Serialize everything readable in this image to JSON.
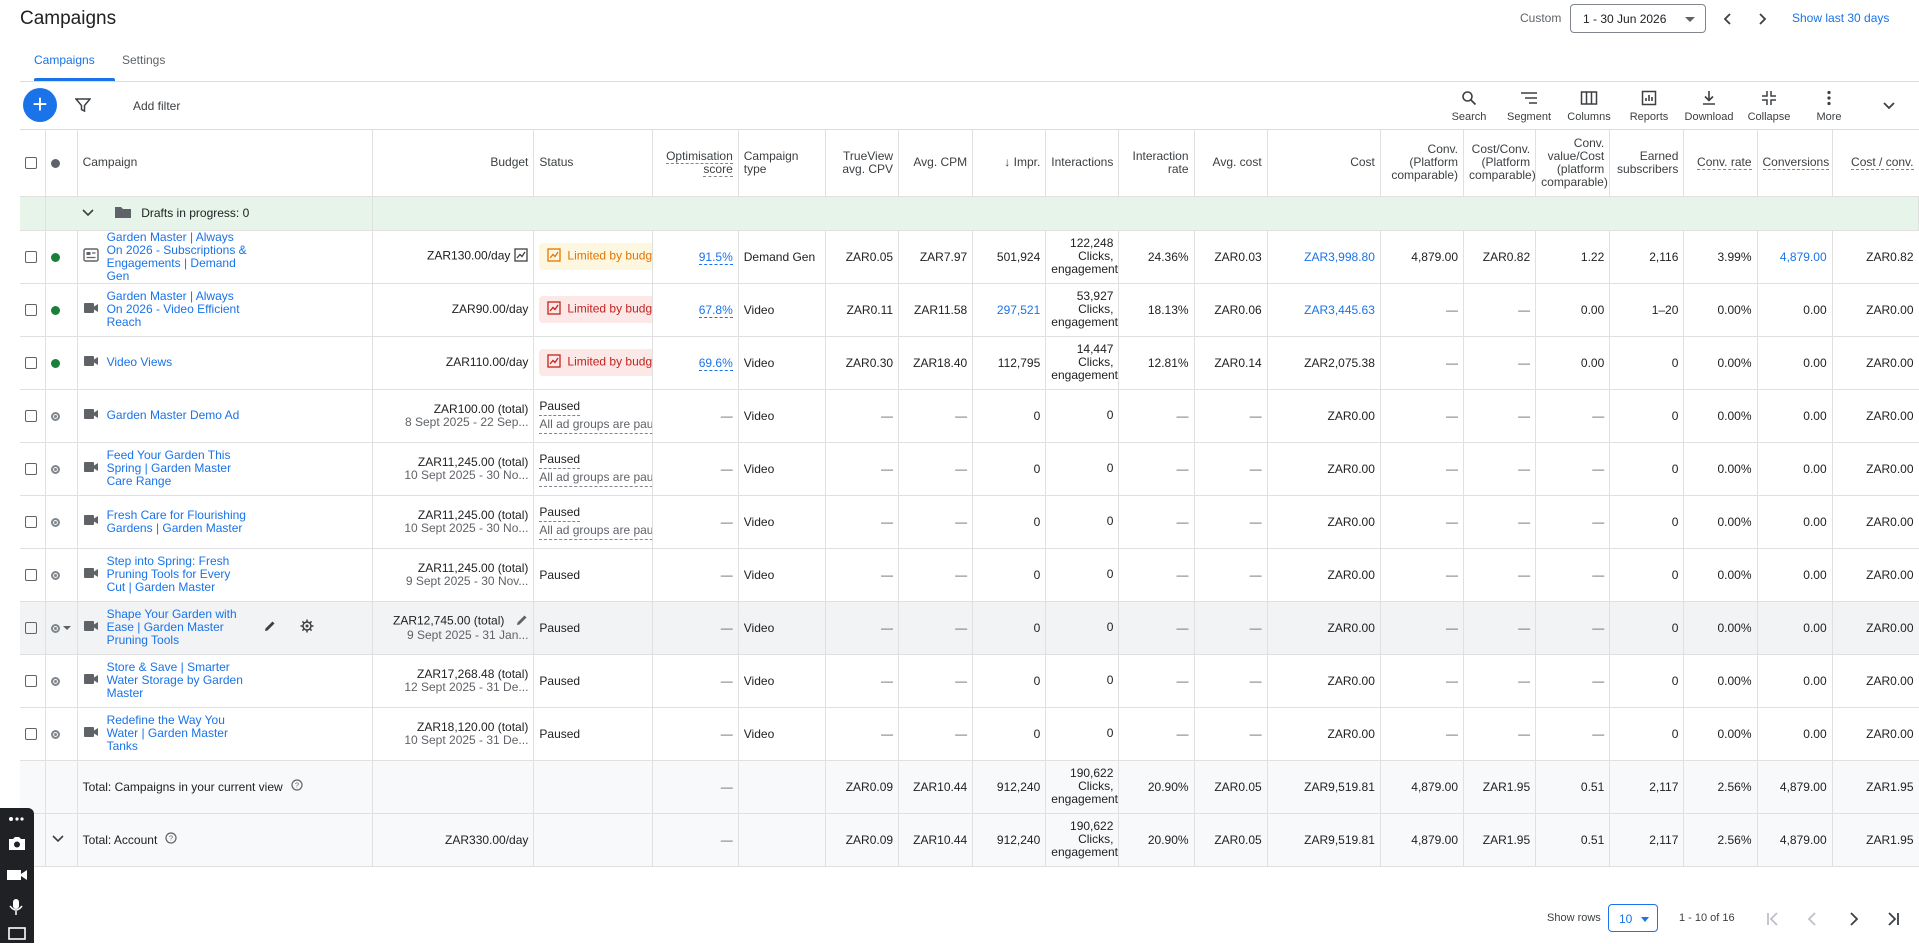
{
  "header": {
    "title": "Campaigns",
    "custom_label": "Custom",
    "date_range": "1 - 30 Jun 2026",
    "show_last": "Show last 30 days"
  },
  "tabs": [
    {
      "label": "Campaigns"
    },
    {
      "label": "Settings"
    }
  ],
  "toolbar": {
    "add_filter": "Add filter",
    "tools": [
      {
        "label": "Search",
        "icon": "search-icon"
      },
      {
        "label": "Segment",
        "icon": "segment-icon"
      },
      {
        "label": "Columns",
        "icon": "columns-icon"
      },
      {
        "label": "Reports",
        "icon": "reports-icon"
      },
      {
        "label": "Download",
        "icon": "download-icon"
      },
      {
        "label": "Collapse",
        "icon": "collapse-icon"
      },
      {
        "label": "More",
        "icon": "more-icon"
      }
    ]
  },
  "columns": {
    "campaign": "Campaign",
    "budget": "Budget",
    "status": "Status",
    "opt": "Optimisation score",
    "ctype": "Campaign type",
    "cpv": "TrueView avg. CPV",
    "cpm": "Avg. CPM",
    "impr": "↓ Impr.",
    "interactions": "Interactions",
    "irate": "Interaction rate",
    "avgcost": "Avg. cost",
    "cost": "Cost",
    "conv": "Conv. (Platform comparable)",
    "costconv": "Cost/Conv. (Platform comparable)",
    "convval": "Conv. value/Cost (platform comparable)",
    "earned": "Earned subscribers",
    "convrate": "Conv. rate",
    "conversions": "Conversions",
    "costperconv": "Cost / conv."
  },
  "drafts": {
    "label": "Drafts in progress: 0"
  },
  "rows": [
    {
      "status_dot": "green",
      "name": "Garden Master | Always On 2026 - Subscriptions & Engagements | Demand Gen",
      "type_icon": "demand-gen-icon",
      "budget": "ZAR130.00/day",
      "budget_sub": "",
      "status": "Limited by budget",
      "status_kind": "y",
      "status_sub": "",
      "opt": "91.5%",
      "ctype": "Demand Gen",
      "cpv": "ZAR0.05",
      "cpm": "ZAR7.97",
      "impr": "501,924",
      "impr_link": false,
      "inter": "122,248 Clicks, engagements",
      "irate": "24.36%",
      "avgcost": "ZAR0.03",
      "cost": "ZAR3,998.80",
      "cost_link": true,
      "conv": "4,879.00",
      "costconv": "ZAR0.82",
      "convval": "1.22",
      "earned": "2,116",
      "convrate": "3.99%",
      "conversions": "4,879.00",
      "conversions_link": true,
      "costperconv": "ZAR0.82"
    },
    {
      "status_dot": "green",
      "name": "Garden Master | Always On 2026 - Video Efficient Reach",
      "type_icon": "video-icon",
      "budget": "ZAR90.00/day",
      "budget_sub": "",
      "status": "Limited by budget",
      "status_kind": "r",
      "status_sub": "",
      "opt": "67.8%",
      "ctype": "Video",
      "cpv": "ZAR0.11",
      "cpm": "ZAR11.58",
      "impr": "297,521",
      "impr_link": true,
      "inter": "53,927 Clicks, engagements",
      "irate": "18.13%",
      "avgcost": "ZAR0.06",
      "cost": "ZAR3,445.63",
      "cost_link": true,
      "conv": "—",
      "costconv": "—",
      "convval": "0.00",
      "earned": "1–20",
      "convrate": "0.00%",
      "conversions": "0.00",
      "conversions_link": false,
      "costperconv": "ZAR0.00"
    },
    {
      "status_dot": "green",
      "name": "Video Views",
      "type_icon": "video-icon",
      "budget": "ZAR110.00/day",
      "budget_sub": "",
      "status": "Limited by budget",
      "status_kind": "r",
      "status_sub": "",
      "opt": "69.6%",
      "ctype": "Video",
      "cpv": "ZAR0.30",
      "cpm": "ZAR18.40",
      "impr": "112,795",
      "impr_link": false,
      "inter": "14,447 Clicks, engagements",
      "irate": "12.81%",
      "avgcost": "ZAR0.14",
      "cost": "ZAR2,075.38",
      "cost_link": false,
      "conv": "—",
      "costconv": "—",
      "convval": "0.00",
      "earned": "0",
      "convrate": "0.00%",
      "conversions": "0.00",
      "conversions_link": false,
      "costperconv": "ZAR0.00"
    },
    {
      "status_dot": "grey",
      "name": "Garden Master Demo Ad",
      "type_icon": "video-icon",
      "budget": "ZAR100.00 (total)",
      "budget_sub": "8 Sept 2025 - 22 Sep...",
      "status": "Paused",
      "status_kind": "p",
      "status_sub": "All ad groups are paused",
      "opt": "—",
      "ctype": "Video",
      "cpv": "—",
      "cpm": "—",
      "impr": "0",
      "impr_link": false,
      "inter": "0",
      "irate": "—",
      "avgcost": "—",
      "cost": "ZAR0.00",
      "cost_link": false,
      "conv": "—",
      "costconv": "—",
      "convval": "—",
      "earned": "0",
      "convrate": "0.00%",
      "conversions": "0.00",
      "conversions_link": false,
      "costperconv": "ZAR0.00"
    },
    {
      "status_dot": "grey",
      "name": "Feed Your Garden This Spring | Garden Master Care Range",
      "type_icon": "video-icon",
      "budget": "ZAR11,245.00 (total)",
      "budget_sub": "10 Sept 2025 - 30 No...",
      "status": "Paused",
      "status_kind": "p",
      "status_sub": "All ad groups are paused",
      "opt": "—",
      "ctype": "Video",
      "cpv": "—",
      "cpm": "—",
      "impr": "0",
      "impr_link": false,
      "inter": "0",
      "irate": "—",
      "avgcost": "—",
      "cost": "ZAR0.00",
      "cost_link": false,
      "conv": "—",
      "costconv": "—",
      "convval": "—",
      "earned": "0",
      "convrate": "0.00%",
      "conversions": "0.00",
      "conversions_link": false,
      "costperconv": "ZAR0.00"
    },
    {
      "status_dot": "grey",
      "name": " Fresh Care for Flourishing Gardens | Garden Master",
      "type_icon": "video-icon",
      "budget": "ZAR11,245.00 (total)",
      "budget_sub": "10 Sept 2025 - 30 No...",
      "status": "Paused",
      "status_kind": "p",
      "status_sub": "All ad groups are paused",
      "opt": "—",
      "ctype": "Video",
      "cpv": "—",
      "cpm": "—",
      "impr": "0",
      "impr_link": false,
      "inter": "0",
      "irate": "—",
      "avgcost": "—",
      "cost": "ZAR0.00",
      "cost_link": false,
      "conv": "—",
      "costconv": "—",
      "convval": "—",
      "earned": "0",
      "convrate": "0.00%",
      "conversions": "0.00",
      "conversions_link": false,
      "costperconv": "ZAR0.00"
    },
    {
      "status_dot": "grey",
      "name": "Step into Spring: Fresh Pruning Tools for Every Cut | Garden Master",
      "type_icon": "video-icon",
      "budget": "ZAR11,245.00 (total)",
      "budget_sub": "9 Sept 2025 - 30 Nov...",
      "status": "Paused",
      "status_kind": "s",
      "status_sub": "",
      "opt": "—",
      "ctype": "Video",
      "cpv": "—",
      "cpm": "—",
      "impr": "0",
      "impr_link": false,
      "inter": "0",
      "irate": "—",
      "avgcost": "—",
      "cost": "ZAR0.00",
      "cost_link": false,
      "conv": "—",
      "costconv": "—",
      "convval": "—",
      "earned": "0",
      "convrate": "0.00%",
      "conversions": "0.00",
      "conversions_link": false,
      "costperconv": "ZAR0.00"
    },
    {
      "status_dot": "grey",
      "name": "Shape Your Garden with Ease | Garden Master Pruning Tools",
      "type_icon": "video-icon",
      "budget": "ZAR12,745.00 (total)",
      "budget_sub": "9 Sept 2025 - 31 Jan...",
      "status": "Paused",
      "status_kind": "s",
      "status_sub": "",
      "opt": "—",
      "ctype": "Video",
      "cpv": "—",
      "cpm": "—",
      "impr": "0",
      "impr_link": false,
      "inter": "0",
      "irate": "—",
      "avgcost": "—",
      "cost": "ZAR0.00",
      "cost_link": false,
      "conv": "—",
      "costconv": "—",
      "convval": "—",
      "earned": "0",
      "convrate": "0.00%",
      "conversions": "0.00",
      "conversions_link": false,
      "costperconv": "ZAR0.00",
      "selected": true
    },
    {
      "status_dot": "grey",
      "name": "Store & Save | Smarter Water Storage by Garden Master",
      "type_icon": "video-icon",
      "budget": "ZAR17,268.48 (total)",
      "budget_sub": "12 Sept 2025 - 31 De...",
      "status": "Paused",
      "status_kind": "s",
      "status_sub": "",
      "opt": "—",
      "ctype": "Video",
      "cpv": "—",
      "cpm": "—",
      "impr": "0",
      "impr_link": false,
      "inter": "0",
      "irate": "—",
      "avgcost": "—",
      "cost": "ZAR0.00",
      "cost_link": false,
      "conv": "—",
      "costconv": "—",
      "convval": "—",
      "earned": "0",
      "convrate": "0.00%",
      "conversions": "0.00",
      "conversions_link": false,
      "costperconv": "ZAR0.00"
    },
    {
      "status_dot": "grey",
      "name": "Redefine the Way You Water | Garden Master Tanks",
      "type_icon": "video-icon",
      "budget": "ZAR18,120.00 (total)",
      "budget_sub": "10 Sept 2025 - 31 De...",
      "status": "Paused",
      "status_kind": "s",
      "status_sub": "",
      "opt": "—",
      "ctype": "Video",
      "cpv": "—",
      "cpm": "—",
      "impr": "0",
      "impr_link": false,
      "inter": "0",
      "irate": "—",
      "avgcost": "—",
      "cost": "ZAR0.00",
      "cost_link": false,
      "conv": "—",
      "costconv": "—",
      "convval": "—",
      "earned": "0",
      "convrate": "0.00%",
      "conversions": "0.00",
      "conversions_link": false,
      "costperconv": "ZAR0.00"
    }
  ],
  "totals": [
    {
      "label": "Total: Campaigns in your current view",
      "budget": "",
      "opt": "—",
      "cpv": "ZAR0.09",
      "cpm": "ZAR10.44",
      "impr": "912,240",
      "inter": "190,622 Clicks, engagements",
      "irate": "20.90%",
      "avgcost": "ZAR0.05",
      "cost": "ZAR9,519.81",
      "conv": "4,879.00",
      "costconv": "ZAR1.95",
      "convval": "0.51",
      "earned": "2,117",
      "convrate": "2.56%",
      "conversions": "4,879.00",
      "costperconv": "ZAR1.95"
    },
    {
      "label": "Total: Account",
      "budget": "ZAR330.00/day",
      "opt": "—",
      "cpv": "ZAR0.09",
      "cpm": "ZAR10.44",
      "impr": "912,240",
      "inter": "190,622 Clicks, engagements",
      "irate": "20.90%",
      "avgcost": "ZAR0.05",
      "cost": "ZAR9,519.81",
      "conv": "4,879.00",
      "costconv": "ZAR1.95",
      "convval": "0.51",
      "earned": "2,117",
      "convrate": "2.56%",
      "conversions": "4,879.00",
      "costperconv": "ZAR1.95"
    }
  ],
  "footer": {
    "show_rows_label": "Show rows",
    "rows_value": "10",
    "page_info": "1 - 10 of 16"
  }
}
